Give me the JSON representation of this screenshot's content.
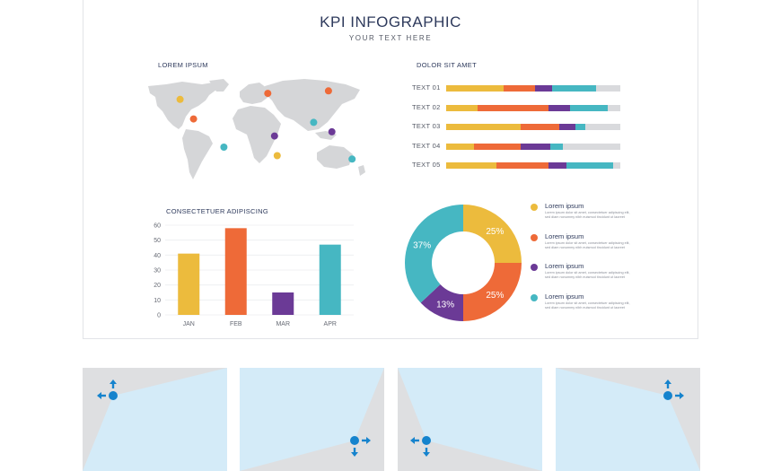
{
  "header": {
    "title": "KPI INFOGRAPHIC",
    "subtitle": "YOUR TEXT HERE"
  },
  "sections": {
    "map_title": "LOREM IPSUM",
    "bars_title": "DOLOR SIT AMET",
    "column_title": "CONSECTETUER ADIPISCING"
  },
  "colors": {
    "yellow": "#ecbb3d",
    "orange": "#ee6a38",
    "purple": "#6b3a96",
    "teal": "#46b7c2",
    "gray": "#d9dadd",
    "map": "#d5d6d8",
    "thumb_bg": "#dedfe1",
    "thumb_panel": "#d4ebf8",
    "arrow": "#1583cd"
  },
  "stacked_bars": [
    {
      "label": "TEXT 01",
      "segments": [
        0.33,
        0.18,
        0.1,
        0.25,
        0.14
      ]
    },
    {
      "label": "TEXT 02",
      "segments": [
        0.18,
        0.41,
        0.12,
        0.22,
        0.07
      ]
    },
    {
      "label": "TEXT 03",
      "segments": [
        0.43,
        0.22,
        0.09,
        0.06,
        0.2
      ]
    },
    {
      "label": "TEXT 04",
      "segments": [
        0.16,
        0.27,
        0.17,
        0.07,
        0.33
      ]
    },
    {
      "label": "TEXT 05",
      "segments": [
        0.29,
        0.3,
        0.1,
        0.27,
        0.04
      ]
    }
  ],
  "map_markers": [
    {
      "lon": -120,
      "lat": 48,
      "color": "yellow"
    },
    {
      "lon": -100,
      "lat": 25,
      "color": "orange"
    },
    {
      "lon": -55,
      "lat": -8,
      "color": "teal"
    },
    {
      "lon": 10,
      "lat": 55,
      "color": "orange"
    },
    {
      "lon": 20,
      "lat": 5,
      "color": "purple"
    },
    {
      "lon": 24,
      "lat": -18,
      "color": "yellow"
    },
    {
      "lon": 78,
      "lat": 21,
      "color": "teal"
    },
    {
      "lon": 100,
      "lat": 58,
      "color": "orange"
    },
    {
      "lon": 105,
      "lat": 10,
      "color": "purple"
    },
    {
      "lon": 135,
      "lat": -22,
      "color": "teal"
    }
  ],
  "chart_data": [
    {
      "type": "bar",
      "title": "CONSECTETUER ADIPISCING",
      "categories": [
        "JAN",
        "FEB",
        "MAR",
        "APR"
      ],
      "values": [
        41,
        58,
        15,
        47
      ],
      "colors": [
        "#ecbb3d",
        "#ee6a38",
        "#6b3a96",
        "#46b7c2"
      ],
      "ylim": [
        0,
        60
      ],
      "yticks": [
        0,
        10,
        20,
        30,
        40,
        50,
        60
      ],
      "grid": true
    },
    {
      "type": "pie",
      "donut": true,
      "values": [
        25,
        25,
        13,
        37
      ],
      "labels": [
        "25%",
        "25%",
        "13%",
        "37%"
      ],
      "colors": [
        "#ecbb3d",
        "#ee6a38",
        "#6b3a96",
        "#46b7c2"
      ]
    }
  ],
  "legend": [
    {
      "title": "Lorem ipsum",
      "body": "Lorem ipsum dolor sit amet, consectetuer adipiscing elit, sed diam nonummy nibh euismod tincidunt ut laoreet",
      "color": "#ecbb3d"
    },
    {
      "title": "Lorem ipsum",
      "body": "Lorem ipsum dolor sit amet, consectetuer adipiscing elit, sed diam nonummy nibh euismod tincidunt ut laoreet",
      "color": "#ee6a38"
    },
    {
      "title": "Lorem ipsum",
      "body": "Lorem ipsum dolor sit amet, consectetuer adipiscing elit, sed diam nonummy nibh euismod tincidunt ut laoreet",
      "color": "#6b3a96"
    },
    {
      "title": "Lorem ipsum",
      "body": "Lorem ipsum dolor sit amet, consectetuer adipiscing elit, sed diam nonummy nibh euismod tincidunt ut laoreet",
      "color": "#46b7c2"
    }
  ],
  "thumbnails": [
    {
      "name": "thumb-top-left",
      "handle": "top-left",
      "icon": "move-arrows-icon"
    },
    {
      "name": "thumb-bottom-right",
      "handle": "bottom-right",
      "icon": "move-arrows-icon"
    },
    {
      "name": "thumb-bottom-left",
      "handle": "bottom-left",
      "icon": "move-arrows-icon"
    },
    {
      "name": "thumb-top-right",
      "handle": "top-right",
      "icon": "move-arrows-icon"
    }
  ]
}
